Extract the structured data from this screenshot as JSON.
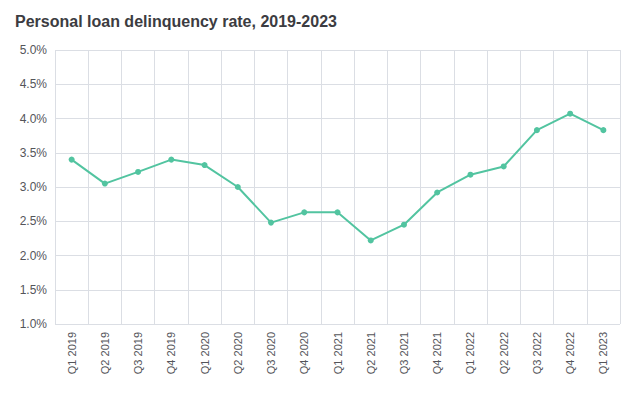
{
  "chart_data": {
    "type": "line",
    "title": "Personal loan delinquency rate, 2019-2023",
    "categories": [
      "Q1 2019",
      "Q2 2019",
      "Q3 2019",
      "Q4 2019",
      "Q1 2020",
      "Q2 2020",
      "Q3 2020",
      "Q4 2020",
      "Q1 2021",
      "Q2 2021",
      "Q3 2021",
      "Q4 2021",
      "Q1 2022",
      "Q2 2022",
      "Q3 2022",
      "Q4 2022",
      "Q1 2023"
    ],
    "values": [
      3.4,
      3.05,
      3.22,
      3.4,
      3.32,
      3.0,
      2.48,
      2.63,
      2.63,
      2.22,
      2.45,
      2.92,
      3.18,
      3.3,
      3.83,
      4.07,
      3.83
    ],
    "color": "#52c4a0",
    "marker": "circle",
    "ylim": [
      1.0,
      5.0
    ],
    "yticks": [
      {
        "value": 1.0,
        "label": "1.0%"
      },
      {
        "value": 1.5,
        "label": "1.5%"
      },
      {
        "value": 2.0,
        "label": "2.0%"
      },
      {
        "value": 2.5,
        "label": "2.5%"
      },
      {
        "value": 3.0,
        "label": "3.0%"
      },
      {
        "value": 3.5,
        "label": "3.5%"
      },
      {
        "value": 4.0,
        "label": "4.0%"
      },
      {
        "value": 4.5,
        "label": "4.5%"
      },
      {
        "value": 5.0,
        "label": "5.0%"
      }
    ],
    "grid": true
  }
}
